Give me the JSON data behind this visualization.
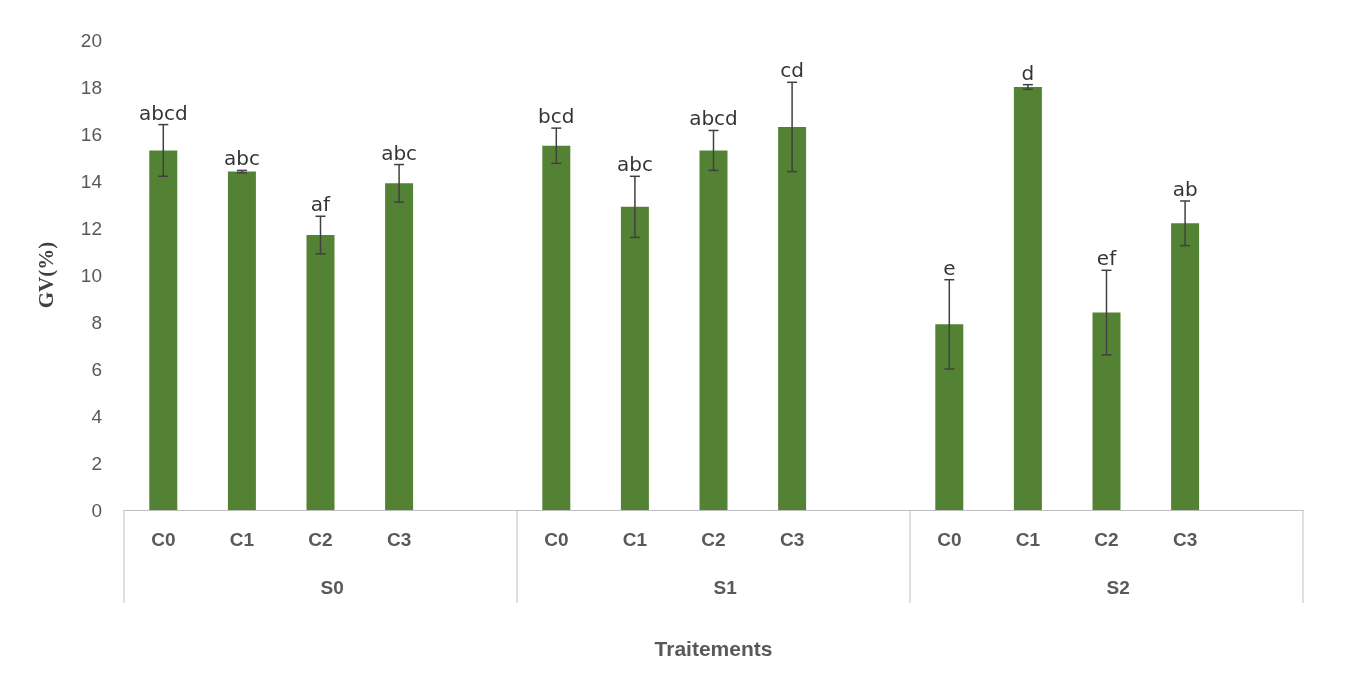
{
  "chart_data": {
    "type": "bar",
    "xlabel": "Traitements",
    "ylabel": "GV(%)",
    "categories": [
      "C0",
      "C1",
      "C2",
      "C3",
      null,
      "C0",
      "C1",
      "C2",
      "C3",
      null,
      "C0",
      "C1",
      "C2",
      "C3",
      null
    ],
    "values": [
      15.3,
      14.4,
      11.7,
      13.9,
      null,
      15.5,
      12.9,
      15.3,
      16.3,
      null,
      7.9,
      18.0,
      8.4,
      12.2,
      null
    ],
    "errors": [
      1.1,
      0.05,
      0.8,
      0.8,
      null,
      0.75,
      1.3,
      0.85,
      1.9,
      null,
      1.9,
      0.1,
      1.8,
      0.95,
      null
    ],
    "value_labels": [
      "abcd",
      "abc",
      "af",
      "abc",
      null,
      "bcd",
      "abc",
      "abcd",
      "cd",
      null,
      "e",
      "d",
      "ef",
      "ab",
      null
    ],
    "annotations": [
      "S0",
      "S1",
      "S2"
    ],
    "color": "#548235",
    "ylim": [
      0,
      20
    ],
    "yticks": [
      0,
      2,
      4,
      6,
      8,
      10,
      12,
      14,
      16,
      18,
      20
    ],
    "grid": false
  }
}
